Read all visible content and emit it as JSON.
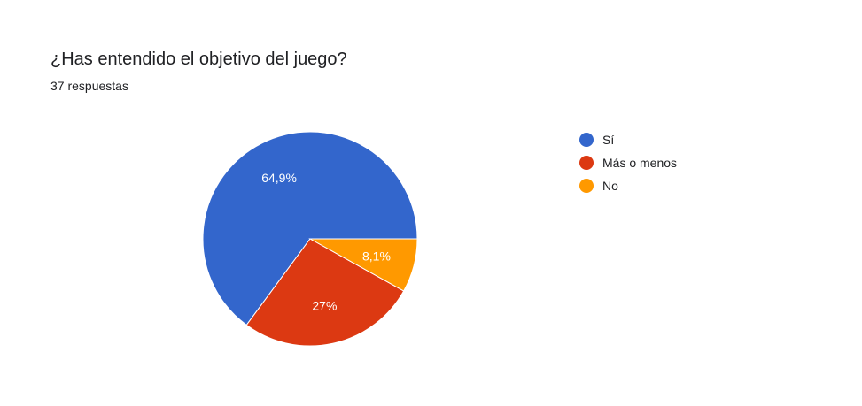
{
  "header": {
    "title": "¿Has entendido el objetivo del juego?",
    "subtitle": "37 respuestas"
  },
  "chart_data": {
    "type": "pie",
    "title": "¿Has entendido el objetivo del juego?",
    "subtitle": "37 respuestas",
    "legend_position": "right",
    "slices": [
      {
        "label": "Sí",
        "value": 64.9,
        "display": "64,9%",
        "color": "#3366cc"
      },
      {
        "label": "Más o menos",
        "value": 27.0,
        "display": "27%",
        "color": "#dc3912"
      },
      {
        "label": "No",
        "value": 8.1,
        "display": "8,1%",
        "color": "#ff9900"
      }
    ]
  }
}
